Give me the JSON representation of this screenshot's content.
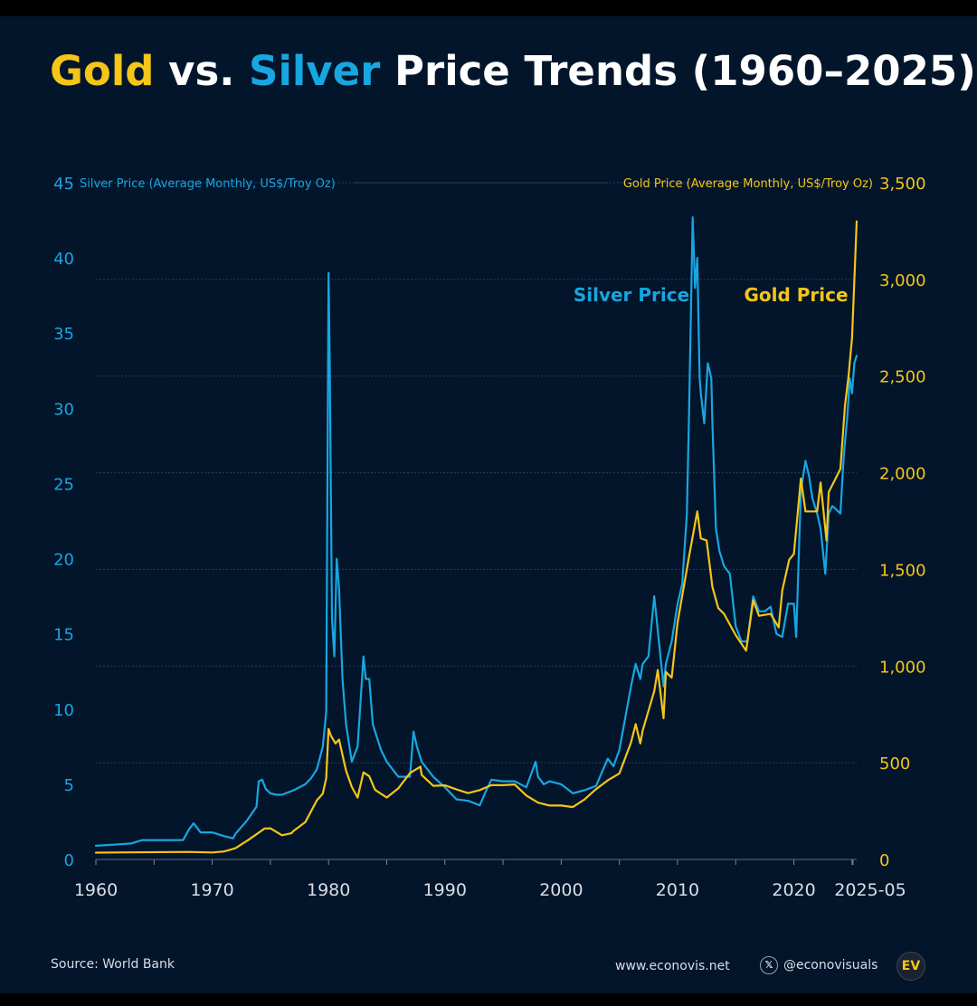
{
  "title": {
    "gold": "Gold",
    "vs": " vs. ",
    "silver": "Silver",
    "rest": " Price Trends (1960–2025)"
  },
  "colors": {
    "gold": "#f5c518",
    "silver": "#18a6e0",
    "background": "#02152b",
    "grid": "#2c3f55",
    "text": "#d9dee6"
  },
  "footer": {
    "source": "Source: World Bank",
    "website": "www.econovis.net",
    "x_icon": "𝕏",
    "handle": "@econovisuals",
    "logo": "EV"
  },
  "chart_data": {
    "type": "line",
    "title": "Gold vs. Silver Price Trends (1960–2025)",
    "left_axis_label": "Silver Price (Average Monthly, US$/Troy Oz)",
    "right_axis_label": "Gold Price (Average Monthly, US$/Troy Oz)",
    "left_ylim": [
      0,
      45
    ],
    "right_ylim": [
      0,
      3500
    ],
    "left_ticks": [
      0,
      5,
      10,
      15,
      20,
      25,
      30,
      35,
      40,
      45
    ],
    "right_ticks": [
      0,
      500,
      1000,
      1500,
      2000,
      2500,
      3000,
      3500
    ],
    "right_tick_labels": [
      "0",
      "500",
      "1,000",
      "1,500",
      "2,000",
      "2,500",
      "3,000",
      "3,500"
    ],
    "xlim": [
      1960,
      2025.4
    ],
    "x_ticks": [
      1960,
      1970,
      1980,
      1990,
      2000,
      2010,
      2020
    ],
    "x_tick_labels": [
      "1960",
      "1970",
      "1980",
      "1990",
      "2000",
      "2010",
      "2020"
    ],
    "x_end_label": "2025-05",
    "grid": true,
    "series": [
      {
        "name": "Silver Price",
        "axis": "left",
        "color": "#18a6e0",
        "x": [
          1960,
          1963,
          1964,
          1967.5,
          1968,
          1968.4,
          1969,
          1970,
          1971,
          1971.8,
          1972,
          1973,
          1973.8,
          1974,
          1974.3,
          1974.6,
          1975,
          1975.5,
          1976,
          1977,
          1978,
          1978.5,
          1979,
          1979.5,
          1979.8,
          1980,
          1980.1,
          1980.3,
          1980.5,
          1980.7,
          1980.9,
          1981.2,
          1981.5,
          1982,
          1982.5,
          1983,
          1983.2,
          1983.5,
          1983.8,
          1984,
          1984.5,
          1985,
          1985.5,
          1986,
          1987,
          1987.3,
          1987.6,
          1988,
          1989,
          1990,
          1991,
          1992,
          1993,
          1993.5,
          1994,
          1995,
          1996,
          1997,
          1997.8,
          1998,
          1998.5,
          1999,
          2000,
          2001,
          2002,
          2003,
          2004,
          2004.5,
          2005,
          2006,
          2006.4,
          2006.8,
          2007,
          2007.5,
          2008,
          2008.2,
          2008.8,
          2009,
          2009.5,
          2010,
          2010.4,
          2010.8,
          2011,
          2011.3,
          2011.5,
          2011.7,
          2011.9,
          2012,
          2012.3,
          2012.6,
          2012.9,
          2013,
          2013.3,
          2013.6,
          2014,
          2014.5,
          2015,
          2015.5,
          2016,
          2016.5,
          2017,
          2017.5,
          2018,
          2018.5,
          2019,
          2019.5,
          2020,
          2020.2,
          2020.6,
          2020.9,
          2021,
          2021.3,
          2021.6,
          2022,
          2022.3,
          2022.7,
          2023,
          2023.3,
          2023.6,
          2024,
          2024.3,
          2024.6,
          2024.8,
          2025,
          2025.2,
          2025.4
        ],
        "values": [
          0.91,
          1.06,
          1.29,
          1.29,
          2.0,
          2.4,
          1.8,
          1.8,
          1.55,
          1.4,
          1.7,
          2.6,
          3.5,
          5.2,
          5.3,
          4.7,
          4.4,
          4.3,
          4.3,
          4.6,
          5.0,
          5.4,
          6.0,
          7.5,
          9.8,
          39.0,
          33.0,
          16.0,
          13.5,
          20.0,
          18.0,
          12.0,
          9.0,
          6.5,
          7.5,
          13.5,
          12.0,
          12.0,
          9.0,
          8.5,
          7.3,
          6.5,
          6.0,
          5.5,
          5.5,
          8.5,
          7.5,
          6.5,
          5.5,
          4.8,
          4.0,
          3.9,
          3.6,
          4.5,
          5.3,
          5.2,
          5.2,
          4.8,
          6.5,
          5.5,
          5.0,
          5.2,
          5.0,
          4.4,
          4.6,
          4.9,
          6.7,
          6.2,
          7.3,
          11.5,
          13.0,
          12.0,
          13.0,
          13.5,
          17.5,
          16.0,
          11.5,
          13.0,
          14.5,
          17.0,
          18.3,
          23.0,
          30.0,
          42.7,
          38.0,
          40.0,
          32.0,
          31.0,
          29.0,
          33.0,
          32.0,
          29.0,
          22.0,
          20.5,
          19.5,
          19.0,
          15.5,
          14.5,
          14.5,
          17.5,
          16.5,
          16.5,
          16.8,
          15.0,
          14.8,
          17.0,
          17.0,
          14.8,
          24.5,
          26.0,
          26.5,
          25.5,
          24.0,
          23.0,
          22.0,
          19.0,
          23.0,
          23.5,
          23.3,
          23.0,
          27.0,
          29.5,
          32.0,
          31.0,
          33.0,
          33.5
        ]
      },
      {
        "name": "Gold Price",
        "axis": "right",
        "color": "#f5c518",
        "x": [
          1960,
          1968,
          1970,
          1971,
          1972,
          1973,
          1973.8,
          1974.5,
          1975,
          1976,
          1976.8,
          1977,
          1978,
          1979,
          1979.5,
          1979.8,
          1980,
          1980.2,
          1980.6,
          1980.9,
          1981.5,
          1982,
          1982.5,
          1983,
          1983.5,
          1984,
          1985,
          1986,
          1987,
          1987.9,
          1988,
          1989,
          1990,
          1991,
          1992,
          1993,
          1994,
          1995,
          1996,
          1997,
          1998,
          1999,
          2000,
          2001,
          2002,
          2003,
          2004,
          2005,
          2006,
          2006.4,
          2006.8,
          2007,
          2008,
          2008.3,
          2008.8,
          2009,
          2009.5,
          2010,
          2011,
          2011.7,
          2012,
          2012.5,
          2013,
          2013.5,
          2014,
          2015,
          2015.9,
          2016.5,
          2017,
          2018,
          2018.7,
          2019,
          2019.6,
          2020,
          2020.6,
          2021,
          2021.5,
          2022,
          2022.3,
          2022.8,
          2023,
          2023.5,
          2024,
          2024.4,
          2024.7,
          2025,
          2025.4
        ],
        "values": [
          35,
          39,
          36,
          41,
          58,
          97,
          130,
          160,
          161,
          125,
          135,
          148,
          193,
          306,
          340,
          420,
          675,
          640,
          600,
          620,
          460,
          375,
          320,
          450,
          430,
          360,
          320,
          368,
          447,
          480,
          437,
          381,
          383,
          362,
          343,
          359,
          384,
          384,
          388,
          331,
          294,
          279,
          279,
          271,
          310,
          364,
          409,
          445,
          604,
          700,
          600,
          666,
          870,
          980,
          730,
          970,
          940,
          1225,
          1570,
          1800,
          1660,
          1650,
          1410,
          1300,
          1270,
          1160,
          1080,
          1340,
          1260,
          1270,
          1200,
          1390,
          1550,
          1580,
          1970,
          1800,
          1800,
          1800,
          1950,
          1650,
          1900,
          1960,
          2020,
          2350,
          2500,
          2700,
          3300
        ]
      }
    ],
    "annotations": [
      {
        "text": "Silver Price",
        "series": "Silver Price"
      },
      {
        "text": "Gold Price",
        "series": "Gold Price"
      }
    ]
  }
}
